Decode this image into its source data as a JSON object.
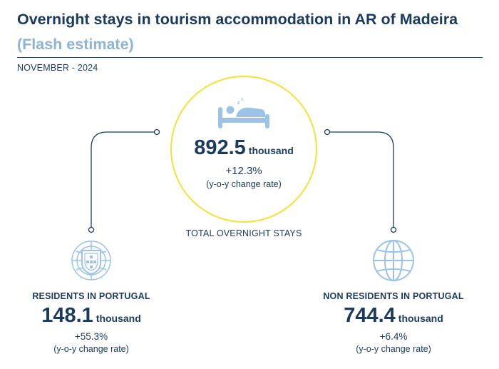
{
  "header": {
    "title": "Overnight stays in tourism accommodation in AR of Madeira",
    "subtitle": "(Flash estimate)",
    "period": "NOVEMBER - 2024"
  },
  "total": {
    "value": "892.5",
    "unit": "thousand",
    "change": "+12.3%",
    "change_note": "(y-o-y change rate)",
    "label": "TOTAL OVERNIGHT STAYS",
    "icon": "bed-icon"
  },
  "residents": {
    "label": "RESIDENTS IN PORTUGAL",
    "value": "148.1",
    "unit": "thousand",
    "change": "+55.3%",
    "change_note": "(y-o-y change rate)",
    "icon": "portugal-coat-of-arms-icon"
  },
  "non_residents": {
    "label": "NON RESIDENTS IN PORTUGAL",
    "value": "744.4",
    "unit": "thousand",
    "change": "+6.4%",
    "change_note": "(y-o-y change rate)",
    "icon": "globe-icon"
  },
  "colors": {
    "navy": "#1b3a5c",
    "light_blue": "#8db4d8",
    "icon_blue": "#9cc3e6",
    "circle_yellow": "#f2e23a"
  }
}
